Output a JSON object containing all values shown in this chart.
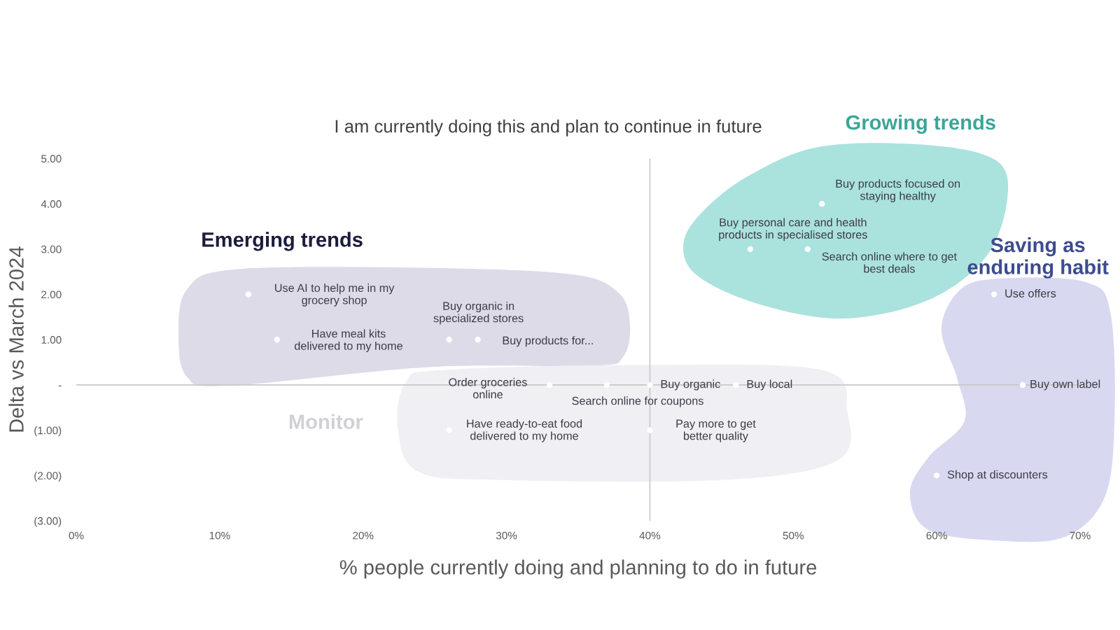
{
  "chart_data": {
    "type": "scatter",
    "title": "I am currently doing this and plan to continue in future",
    "xlabel": "% people currently doing and planning to do in future",
    "ylabel": "Delta vs March 2024",
    "x": [
      12,
      14,
      26,
      28,
      33,
      37,
      40,
      46,
      26,
      40,
      52,
      47,
      51,
      64,
      66,
      60
    ],
    "series": [
      {
        "color": "#ffffff",
        "values": [
          2,
          1,
          1,
          1,
          0,
          0,
          0,
          0,
          -1,
          -1,
          4,
          3,
          3,
          2,
          0,
          -2
        ]
      }
    ],
    "marker": "circle",
    "xlim": [
      0,
      70
    ],
    "xticks": [
      {
        "value": 0,
        "label": "0%"
      },
      {
        "value": 10,
        "label": "10%"
      },
      {
        "value": 20,
        "label": "20%"
      },
      {
        "value": 30,
        "label": "30%"
      },
      {
        "value": 40,
        "label": "40%"
      },
      {
        "value": 50,
        "label": "50%"
      },
      {
        "value": 60,
        "label": "60%"
      },
      {
        "value": 70,
        "label": "70%"
      }
    ],
    "ylim": [
      -3,
      5
    ],
    "yticks": [
      {
        "value": -3,
        "label": "(3.00)"
      },
      {
        "value": -2,
        "label": "(2.00)"
      },
      {
        "value": -1,
        "label": "(1.00)"
      },
      {
        "value": 0,
        "label": "-"
      },
      {
        "value": 1,
        "label": "1.00"
      },
      {
        "value": 2,
        "label": "2.00"
      },
      {
        "value": 3,
        "label": "3.00"
      },
      {
        "value": 4,
        "label": "4.00"
      },
      {
        "value": 5,
        "label": "5.00"
      }
    ],
    "ref_lines": [
      {
        "axis": "y",
        "value": 0,
        "color": "#c8c8c8"
      },
      {
        "axis": "x",
        "value": 40,
        "color": "#c8c8c8"
      }
    ],
    "annotations": [
      "Use AI to help me in my\ngrocery shop",
      "Have meal kits\ndelivered to my home",
      {
        "text": "Buy organic in\nspecialized stores",
        "x": 26,
        "y": 1
      },
      "Buy products for...",
      "Order groceries\nonline",
      {
        "text": "Search online for coupons",
        "x": 37,
        "y": 0
      },
      {
        "text": "Buy organic",
        "x": 40,
        "y": 0
      },
      {
        "text": "Buy local",
        "x": 46,
        "y": 0
      },
      "Have ready-to-eat food\ndelivered to my home",
      "Pay more to get\nbetter quality",
      "Buy products focused on\nstaying healthy",
      {
        "text": "Buy personal care and health\nproducts in specialised stores",
        "x": 47,
        "y": 3
      },
      "Search online where to get\nbest deals",
      {
        "text": "Use offers",
        "x": 64,
        "y": 2
      },
      {
        "text": "Buy own label",
        "x": 66,
        "y": 0
      },
      {
        "text": "Shop at discounters",
        "x": 60,
        "y": -2
      },
      "Emerging trends",
      "Growing trends",
      "Saving as\nenduring habit",
      "Monitor"
    ]
  }
}
